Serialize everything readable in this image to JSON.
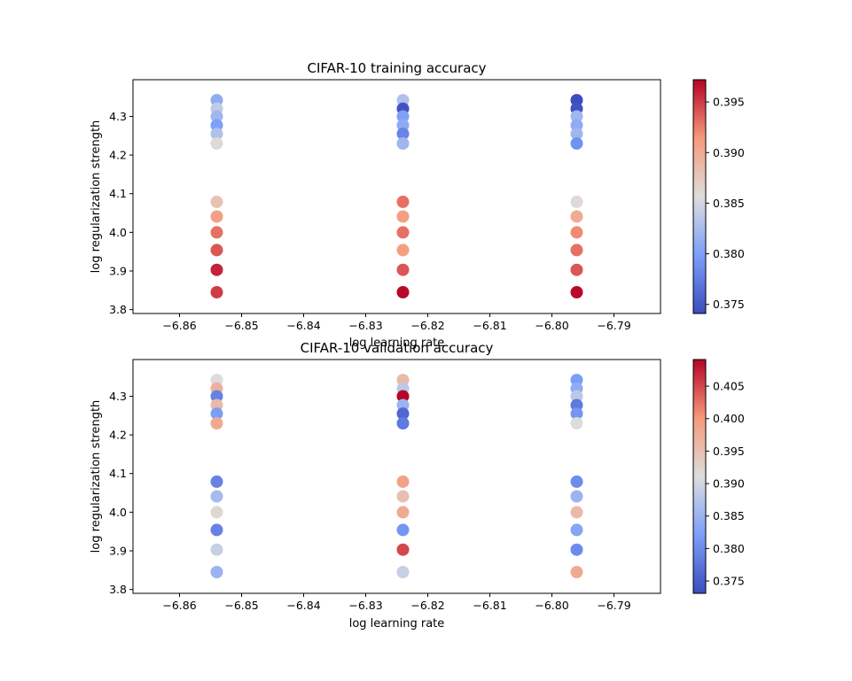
{
  "chart_data": [
    {
      "type": "scatter",
      "title": "CIFAR-10 training accuracy",
      "xlabel": "log learning rate",
      "ylabel": "log regularization strength",
      "xlim": [
        -6.8675,
        -6.7825
      ],
      "ylim": [
        3.79,
        4.395
      ],
      "xticks": [
        -6.86,
        -6.85,
        -6.84,
        -6.83,
        -6.82,
        -6.81,
        -6.8,
        -6.79
      ],
      "xtick_labels": [
        "−6.86",
        "−6.85",
        "−6.84",
        "−6.83",
        "−6.82",
        "−6.81",
        "−6.80",
        "−6.79"
      ],
      "yticks": [
        3.8,
        3.9,
        4.0,
        4.1,
        4.2,
        4.3
      ],
      "ytick_labels": [
        "3.8",
        "3.9",
        "4.0",
        "4.1",
        "4.2",
        "4.3"
      ],
      "colormap": "coolwarm",
      "colorbar": {
        "min": 0.3741,
        "max": 0.3972,
        "ticks": [
          0.375,
          0.38,
          0.385,
          0.39,
          0.395
        ],
        "tick_labels": [
          "0.375",
          "0.380",
          "0.385",
          "0.390",
          "0.395"
        ]
      },
      "grid": false,
      "points": [
        {
          "x": -6.854,
          "y": 4.342,
          "v": 0.381
        },
        {
          "x": -6.854,
          "y": 4.32,
          "v": 0.384
        },
        {
          "x": -6.854,
          "y": 4.3,
          "v": 0.382
        },
        {
          "x": -6.854,
          "y": 4.277,
          "v": 0.38
        },
        {
          "x": -6.854,
          "y": 4.255,
          "v": 0.383
        },
        {
          "x": -6.854,
          "y": 4.23,
          "v": 0.386
        },
        {
          "x": -6.854,
          "y": 4.079,
          "v": 0.388
        },
        {
          "x": -6.854,
          "y": 4.041,
          "v": 0.391
        },
        {
          "x": -6.854,
          "y": 4.0,
          "v": 0.393
        },
        {
          "x": -6.854,
          "y": 3.954,
          "v": 0.394
        },
        {
          "x": -6.854,
          "y": 3.903,
          "v": 0.396
        },
        {
          "x": -6.854,
          "y": 3.845,
          "v": 0.395
        },
        {
          "x": -6.824,
          "y": 4.342,
          "v": 0.383
        },
        {
          "x": -6.824,
          "y": 4.32,
          "v": 0.3745
        },
        {
          "x": -6.824,
          "y": 4.3,
          "v": 0.38
        },
        {
          "x": -6.824,
          "y": 4.277,
          "v": 0.381
        },
        {
          "x": -6.824,
          "y": 4.255,
          "v": 0.378
        },
        {
          "x": -6.824,
          "y": 4.23,
          "v": 0.382
        },
        {
          "x": -6.824,
          "y": 4.079,
          "v": 0.393
        },
        {
          "x": -6.824,
          "y": 4.041,
          "v": 0.391
        },
        {
          "x": -6.824,
          "y": 4.0,
          "v": 0.393
        },
        {
          "x": -6.824,
          "y": 3.954,
          "v": 0.391
        },
        {
          "x": -6.824,
          "y": 3.903,
          "v": 0.394
        },
        {
          "x": -6.824,
          "y": 3.845,
          "v": 0.397
        },
        {
          "x": -6.796,
          "y": 4.342,
          "v": 0.3742
        },
        {
          "x": -6.796,
          "y": 4.32,
          "v": 0.3745
        },
        {
          "x": -6.796,
          "y": 4.3,
          "v": 0.382
        },
        {
          "x": -6.796,
          "y": 4.277,
          "v": 0.381
        },
        {
          "x": -6.796,
          "y": 4.255,
          "v": 0.382
        },
        {
          "x": -6.796,
          "y": 4.23,
          "v": 0.379
        },
        {
          "x": -6.796,
          "y": 4.079,
          "v": 0.386
        },
        {
          "x": -6.796,
          "y": 4.041,
          "v": 0.39
        },
        {
          "x": -6.796,
          "y": 4.0,
          "v": 0.392
        },
        {
          "x": -6.796,
          "y": 3.954,
          "v": 0.393
        },
        {
          "x": -6.796,
          "y": 3.903,
          "v": 0.394
        },
        {
          "x": -6.796,
          "y": 3.845,
          "v": 0.397
        }
      ]
    },
    {
      "type": "scatter",
      "title": "CIFAR-10 validation accuracy",
      "xlabel": "log learning rate",
      "ylabel": "log regularization strength",
      "xlim": [
        -6.8675,
        -6.7825
      ],
      "ylim": [
        3.79,
        4.395
      ],
      "xticks": [
        -6.86,
        -6.85,
        -6.84,
        -6.83,
        -6.82,
        -6.81,
        -6.8,
        -6.79
      ],
      "xtick_labels": [
        "−6.86",
        "−6.85",
        "−6.84",
        "−6.83",
        "−6.82",
        "−6.81",
        "−6.80",
        "−6.79"
      ],
      "yticks": [
        3.8,
        3.9,
        4.0,
        4.1,
        4.2,
        4.3
      ],
      "ytick_labels": [
        "3.8",
        "3.9",
        "4.0",
        "4.1",
        "4.2",
        "4.3"
      ],
      "colormap": "coolwarm",
      "colorbar": {
        "min": 0.3731,
        "max": 0.4091,
        "ticks": [
          0.375,
          0.38,
          0.385,
          0.39,
          0.395,
          0.4,
          0.405
        ],
        "tick_labels": [
          "0.375",
          "0.380",
          "0.385",
          "0.390",
          "0.395",
          "0.400",
          "0.405"
        ]
      },
      "grid": false,
      "points": [
        {
          "x": -6.854,
          "y": 4.342,
          "v": 0.391
        },
        {
          "x": -6.854,
          "y": 4.32,
          "v": 0.397
        },
        {
          "x": -6.854,
          "y": 4.3,
          "v": 0.379
        },
        {
          "x": -6.854,
          "y": 4.277,
          "v": 0.396
        },
        {
          "x": -6.854,
          "y": 4.255,
          "v": 0.382
        },
        {
          "x": -6.854,
          "y": 4.23,
          "v": 0.398
        },
        {
          "x": -6.854,
          "y": 4.079,
          "v": 0.379
        },
        {
          "x": -6.854,
          "y": 4.041,
          "v": 0.386
        },
        {
          "x": -6.854,
          "y": 4.0,
          "v": 0.392
        },
        {
          "x": -6.854,
          "y": 3.954,
          "v": 0.379
        },
        {
          "x": -6.854,
          "y": 3.903,
          "v": 0.389
        },
        {
          "x": -6.854,
          "y": 3.845,
          "v": 0.385
        },
        {
          "x": -6.824,
          "y": 4.342,
          "v": 0.396
        },
        {
          "x": -6.824,
          "y": 4.32,
          "v": 0.388
        },
        {
          "x": -6.824,
          "y": 4.3,
          "v": 0.409
        },
        {
          "x": -6.824,
          "y": 4.277,
          "v": 0.385
        },
        {
          "x": -6.824,
          "y": 4.255,
          "v": 0.376
        },
        {
          "x": -6.824,
          "y": 4.23,
          "v": 0.378
        },
        {
          "x": -6.824,
          "y": 4.079,
          "v": 0.399
        },
        {
          "x": -6.824,
          "y": 4.041,
          "v": 0.395
        },
        {
          "x": -6.824,
          "y": 4.0,
          "v": 0.398
        },
        {
          "x": -6.824,
          "y": 3.954,
          "v": 0.381
        },
        {
          "x": -6.824,
          "y": 3.903,
          "v": 0.405
        },
        {
          "x": -6.824,
          "y": 3.845,
          "v": 0.389
        },
        {
          "x": -6.796,
          "y": 4.342,
          "v": 0.382
        },
        {
          "x": -6.796,
          "y": 4.32,
          "v": 0.384
        },
        {
          "x": -6.796,
          "y": 4.3,
          "v": 0.388
        },
        {
          "x": -6.796,
          "y": 4.277,
          "v": 0.378
        },
        {
          "x": -6.796,
          "y": 4.255,
          "v": 0.381
        },
        {
          "x": -6.796,
          "y": 4.23,
          "v": 0.391
        },
        {
          "x": -6.796,
          "y": 4.079,
          "v": 0.38
        },
        {
          "x": -6.796,
          "y": 4.041,
          "v": 0.385
        },
        {
          "x": -6.796,
          "y": 4.0,
          "v": 0.396
        },
        {
          "x": -6.796,
          "y": 3.954,
          "v": 0.383
        },
        {
          "x": -6.796,
          "y": 3.903,
          "v": 0.38
        },
        {
          "x": -6.796,
          "y": 3.845,
          "v": 0.398
        }
      ]
    }
  ]
}
